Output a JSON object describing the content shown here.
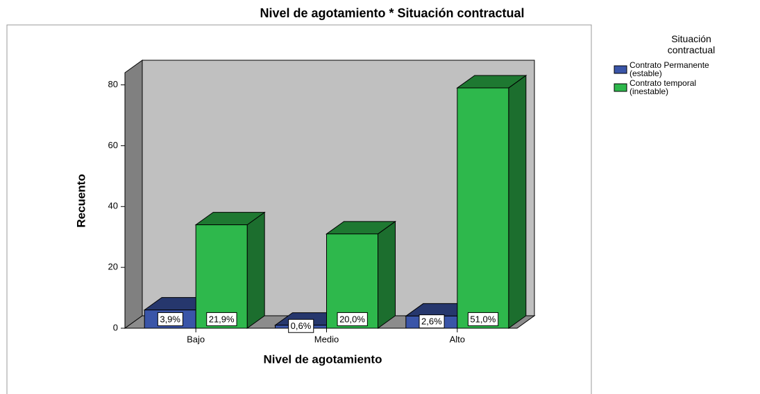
{
  "chart_data": {
    "type": "bar3d",
    "title": "Nivel de agotamiento * Situación contractual",
    "x_label": "Nivel de agotamiento",
    "y_label": "Recuento",
    "legend_title": "Situación contractual",
    "categories": [
      "Bajo",
      "Medio",
      "Alto"
    ],
    "series": [
      {
        "name": "Contrato Permanente (estable)",
        "color": "#3a55a8",
        "values": [
          6,
          1,
          4
        ],
        "percent_labels": [
          "3,9%",
          "0,6%",
          "2,6%"
        ]
      },
      {
        "name": "Contrato temporal (inestable)",
        "color": "#2eb84c",
        "values": [
          34,
          31,
          79
        ],
        "percent_labels": [
          "21,9%",
          "20,0%",
          "51,0%"
        ]
      }
    ],
    "ylim": [
      0,
      84
    ],
    "yticks": [
      0,
      20,
      40,
      60,
      80
    ],
    "legend": "right"
  }
}
